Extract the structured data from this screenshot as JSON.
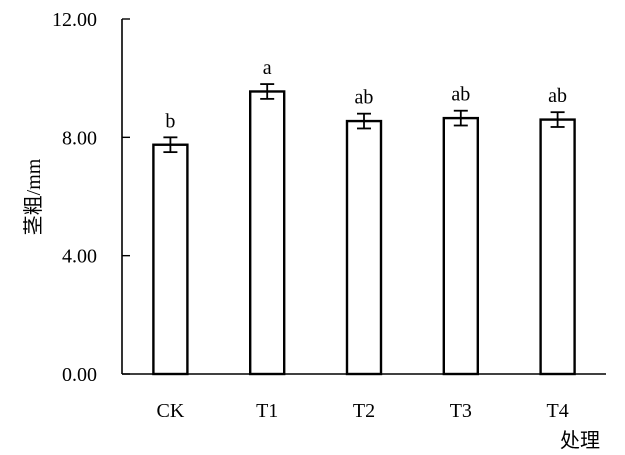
{
  "chart_data": {
    "type": "bar",
    "title": "",
    "xlabel": "处理",
    "ylabel": "茎粗/mm",
    "ylim": [
      0,
      12
    ],
    "yticks": [
      "0.00",
      "4.00",
      "8.00",
      "12.00"
    ],
    "ytick_values": [
      0,
      4,
      8,
      12
    ],
    "categories": [
      "CK",
      "T1",
      "T2",
      "T3",
      "T4"
    ],
    "values": [
      7.75,
      9.55,
      8.55,
      8.65,
      8.6
    ],
    "errors": [
      0.25,
      0.25,
      0.25,
      0.25,
      0.25
    ],
    "significance": [
      "b",
      "a",
      "ab",
      "ab",
      "ab"
    ],
    "grid": false,
    "bar_fill": "#ffffff",
    "bar_stroke": "#000000"
  }
}
